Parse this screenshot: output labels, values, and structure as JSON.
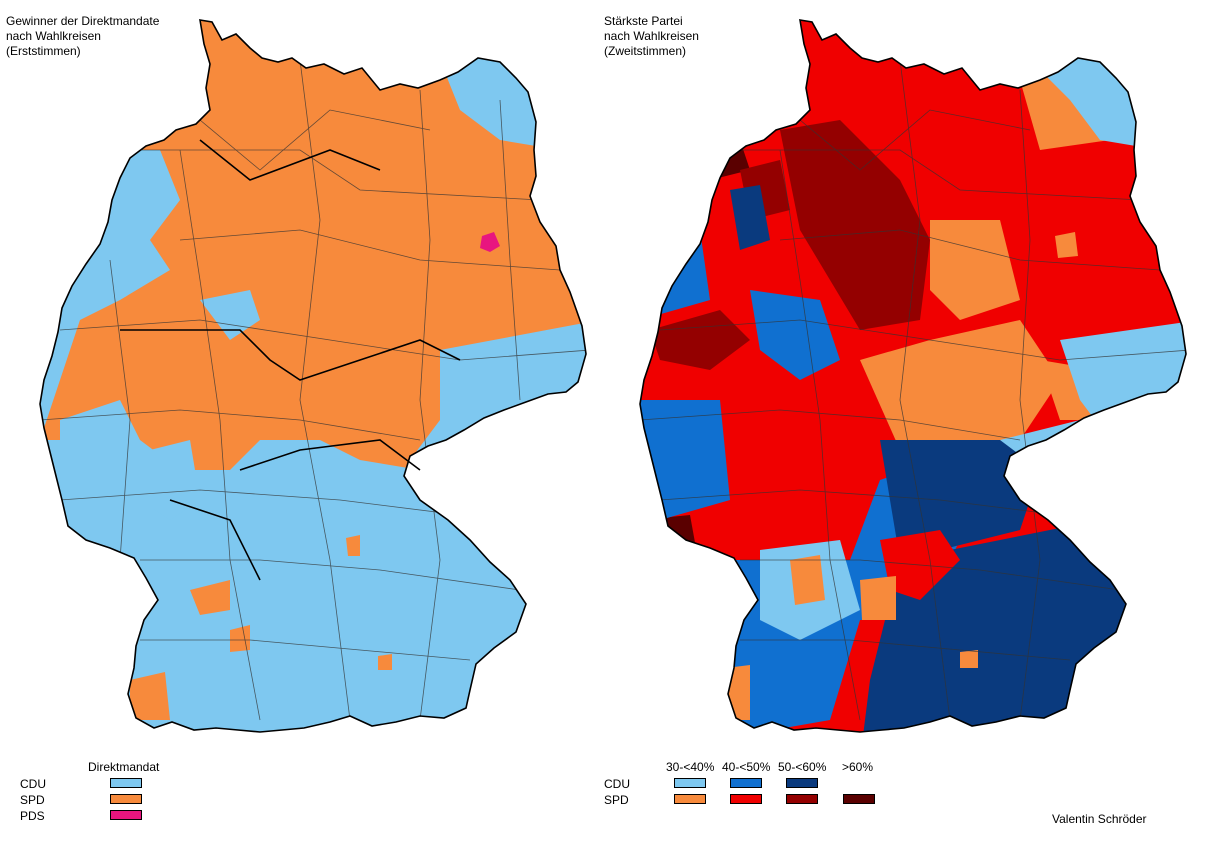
{
  "left_map": {
    "title": "Gewinner der Direktmandate\nnach Wahlkreisen\n(Erststimmen)",
    "legend": {
      "header": "Direktmandat",
      "rows": [
        {
          "party": "CDU",
          "color": "#7ec8f0"
        },
        {
          "party": "SPD",
          "color": "#f78a3c"
        },
        {
          "party": "PDS",
          "color": "#e8157f"
        }
      ]
    }
  },
  "right_map": {
    "title": "Stärkste Partei\nnach Wahlkreisen\n(Zweitstimmen)",
    "legend": {
      "column_headers": [
        "30-<40%",
        "40-<50%",
        "50-<60%",
        ">60%"
      ],
      "rows": [
        {
          "party": "CDU",
          "colors": [
            "#7ec8f0",
            "#1070d0",
            "#0a3a7e",
            null
          ]
        },
        {
          "party": "SPD",
          "colors": [
            "#f78a3c",
            "#f00000",
            "#940000",
            "#5a0000"
          ]
        }
      ]
    }
  },
  "credit": "Valentin Schröder"
}
